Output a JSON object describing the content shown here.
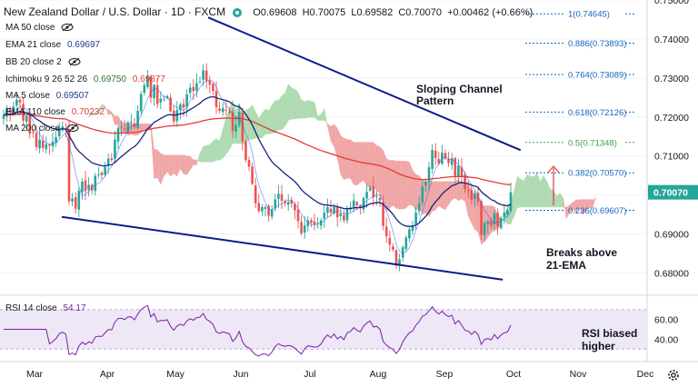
{
  "header": {
    "symbol": "New Zealand Dollar / U.S. Dollar · 1D · FXCM",
    "o": "O0.69608",
    "h": "H0.70075",
    "l": "L0.69582",
    "c": "C0.70070",
    "chg": "+0.00462 (+0.66%)"
  },
  "indicators": [
    {
      "label": "MA 50 close",
      "v1": "",
      "v2": "",
      "v3": ""
    },
    {
      "label": "EMA 21 close",
      "v1": "0.69697",
      "v2": "",
      "v3": ""
    },
    {
      "label": "BB 20 close 2",
      "v1": "",
      "v2": "",
      "v3": ""
    },
    {
      "label": "Ichimoku 9 26 52 26",
      "v1": "",
      "v2": "0.69750",
      "v3": "0.69877"
    },
    {
      "label": "MA 5 close",
      "v1": "0.69507",
      "v2": "",
      "v3": ""
    },
    {
      "label": "EMA 110 close",
      "v1": "",
      "v2": "",
      "v3": "0.70232"
    },
    {
      "label": "MA 200 close",
      "v1": "",
      "v2": "",
      "v3": ""
    }
  ],
  "annotations": {
    "channel_line1": "Sloping Channel",
    "channel_line2": "Pattern",
    "breaks_line1": "Breaks above",
    "breaks_line2": "21-EMA",
    "rsi_line1": "RSI biased",
    "rsi_line2": "higher"
  },
  "rsi_label": "RSI 14 close",
  "rsi_value": "54.17",
  "colors": {
    "up": "#26a69a",
    "down": "#ef5350",
    "ema21": "#1a237e",
    "ema110": "#e53935",
    "ma5": "#2962ff",
    "cloud_green": "#a5d6a7",
    "cloud_red": "#ef9a9a",
    "channel": "#0d1b8c",
    "rsi": "#7b1fa2",
    "rsi_band": "#ede7f6"
  },
  "chart_data": {
    "type": "candlestick",
    "title": "New Zealand Dollar / U.S. Dollar, 1D, FXCM",
    "ylim": [
      0.675,
      0.75
    ],
    "y_ticks": [
      "0.68000",
      "0.69000",
      "0.70000",
      "0.71000",
      "0.72000",
      "0.73000",
      "0.74000",
      "0.75000"
    ],
    "x_ticks": [
      "Mar",
      "Apr",
      "May",
      "Jun",
      "Jul",
      "Aug",
      "Sep",
      "Oct",
      "Nov",
      "Dec"
    ],
    "last_price_label": "0.70070",
    "fib_levels": [
      {
        "ratio": 1,
        "value": 0.74645,
        "label": "1(0.74645)"
      },
      {
        "ratio": 0.886,
        "value": 0.73893,
        "label": "0.886(0.73893)"
      },
      {
        "ratio": 0.764,
        "value": 0.73089,
        "label": "0.764(0.73089)"
      },
      {
        "ratio": 0.618,
        "value": 0.72126,
        "label": "0.618(0.72126)"
      },
      {
        "ratio": 0.5,
        "value": 0.71348,
        "label": "0.5(0.71348)"
      },
      {
        "ratio": 0.382,
        "value": 0.7057,
        "label": "0.382(0.70570)"
      },
      {
        "ratio": 0.236,
        "value": 0.69607,
        "label": "0.236(0.69607)"
      }
    ],
    "channel": {
      "upper": [
        {
          "t": 75,
          "p": 0.7453
        },
        {
          "t": 158,
          "p": 0.7115
        }
      ],
      "lower": [
        {
          "t": 0,
          "p": 0.6944
        },
        {
          "t": 157,
          "p": 0.6783
        }
      ]
    },
    "closes": [
      0.7205,
      0.7222,
      0.7211,
      0.7227,
      0.7244,
      0.7237,
      0.7191,
      0.7203,
      0.7157,
      0.7159,
      0.7123,
      0.7142,
      0.7121,
      0.713,
      0.7127,
      0.7137,
      0.7148,
      0.7169,
      0.7176,
      0.7166,
      0.6984,
      0.6991,
      0.6965,
      0.7011,
      0.7034,
      0.701,
      0.7026,
      0.7012,
      0.7049,
      0.7053,
      0.7051,
      0.7072,
      0.7093,
      0.709,
      0.7142,
      0.7171,
      0.7173,
      0.7167,
      0.7186,
      0.7187,
      0.7174,
      0.7216,
      0.7259,
      0.7282,
      0.7304,
      0.7249,
      0.7282,
      0.7233,
      0.7247,
      0.7245,
      0.7253,
      0.7215,
      0.7189,
      0.7218,
      0.7232,
      0.7224,
      0.7258,
      0.7275,
      0.7267,
      0.7287,
      0.7291,
      0.732,
      0.7293,
      0.7283,
      0.7267,
      0.7225,
      0.7216,
      0.7223,
      0.7218,
      0.7213,
      0.7164,
      0.718,
      0.7213,
      0.7137,
      0.709,
      0.7073,
      0.7029,
      0.6979,
      0.6959,
      0.6969,
      0.6969,
      0.6947,
      0.6963,
      0.6989,
      0.7003,
      0.6985,
      0.6979,
      0.6982,
      0.6978,
      0.6961,
      0.6933,
      0.6902,
      0.6922,
      0.6935,
      0.6929,
      0.6925,
      0.6926,
      0.6935,
      0.6955,
      0.6969,
      0.6955,
      0.6969,
      0.6943,
      0.6953,
      0.6935,
      0.6963,
      0.6968,
      0.6986,
      0.6974,
      0.6967,
      0.6992,
      0.7008,
      0.7018,
      0.6994,
      0.6997,
      0.6986,
      0.6921,
      0.6894,
      0.6873,
      0.686,
      0.6819,
      0.6835,
      0.6866,
      0.6891,
      0.6912,
      0.6922,
      0.6955,
      0.6979,
      0.7022,
      0.7034,
      0.7071,
      0.7116,
      0.7095,
      0.7081,
      0.7109,
      0.7093,
      0.7082,
      0.7094,
      0.7049,
      0.7075,
      0.7048,
      0.7015,
      0.701,
      0.6987,
      0.7005,
      0.6983,
      0.6898,
      0.6928,
      0.6933,
      0.6921,
      0.6953,
      0.6919,
      0.6941,
      0.6955,
      0.6961,
      0.7007
    ]
  }
}
